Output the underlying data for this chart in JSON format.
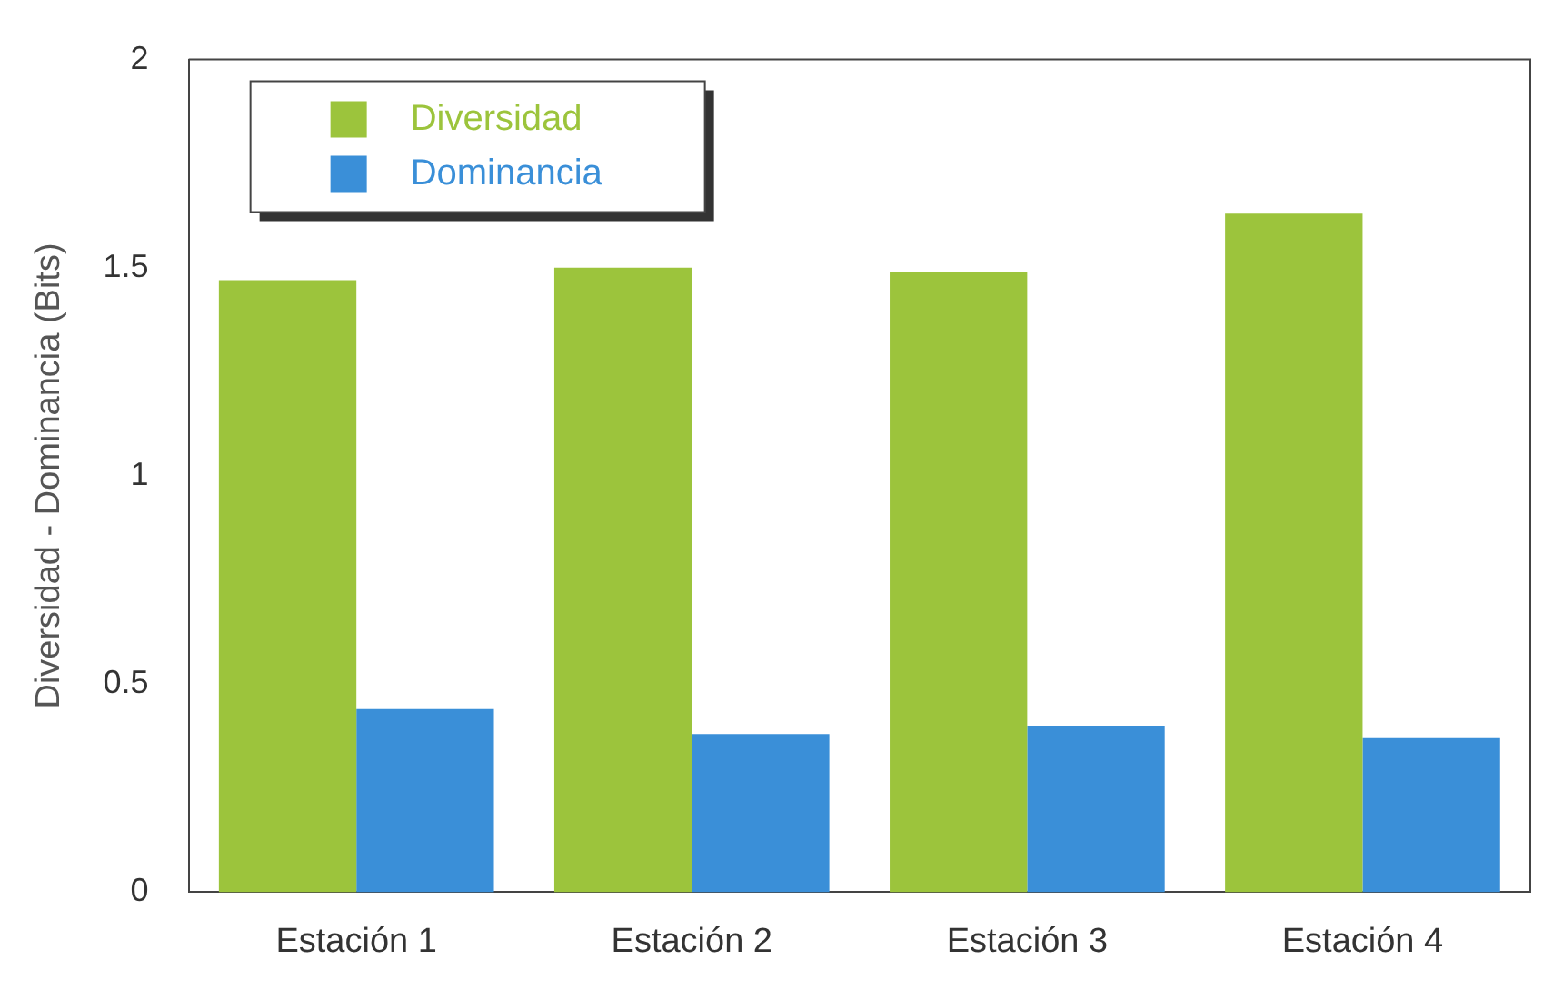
{
  "chart_data": {
    "type": "bar",
    "ylabel": "Diversidad - Dominancia (Bits)",
    "categories": [
      "Estación 1",
      "Estación 2",
      "Estación 3",
      "Estación 4"
    ],
    "series": [
      {
        "name": "Diversidad",
        "color": "#9cc43c",
        "values": [
          1.47,
          1.5,
          1.49,
          1.63
        ]
      },
      {
        "name": "Dominancia",
        "color": "#3a8fd8",
        "values": [
          0.44,
          0.38,
          0.4,
          0.37
        ]
      }
    ],
    "ylim": [
      0,
      2
    ],
    "yticks": [
      0,
      0.5,
      1,
      1.5,
      2
    ],
    "grid": false,
    "legend": "top left"
  }
}
